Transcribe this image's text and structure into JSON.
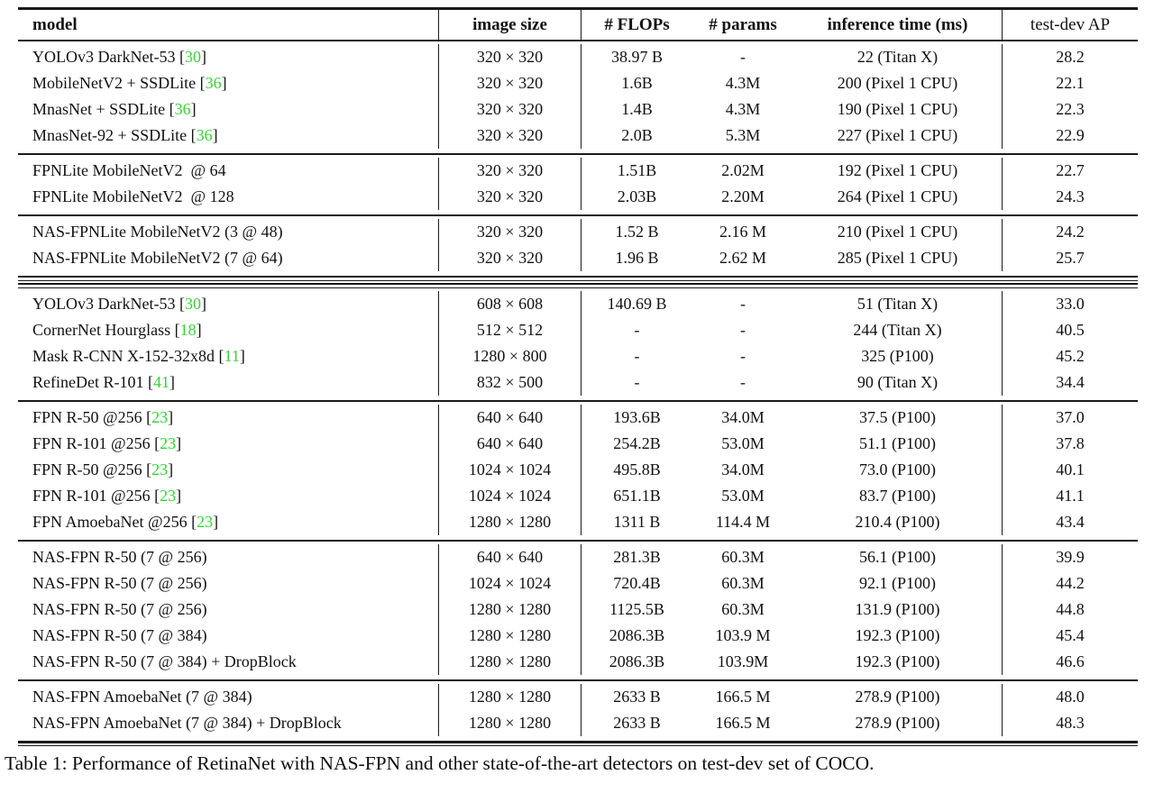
{
  "colors": {
    "citation": "#33d433"
  },
  "caption": "Table 1: Performance of RetinaNet with NAS-FPN and other state-of-the-art detectors on test-dev set of COCO.",
  "table": {
    "columns": [
      "model",
      "image size",
      "# FLOPs",
      "# params",
      "inference time (ms)",
      "test-dev AP"
    ],
    "groups": [
      {
        "rows": [
          {
            "model": "YOLOv3 DarkNet-53",
            "cite": "30",
            "size": "320 × 320",
            "flops": "38.97 B",
            "params": "-",
            "time": "22 (Titan X)",
            "ap": "28.2"
          },
          {
            "model": "MobileNetV2 + SSDLite",
            "cite": "36",
            "size": "320 × 320",
            "flops": "1.6B",
            "params": "4.3M",
            "time": "200 (Pixel 1 CPU)",
            "ap": "22.1"
          },
          {
            "model": "MnasNet + SSDLite",
            "cite": "36",
            "size": "320 × 320",
            "flops": "1.4B",
            "params": "4.3M",
            "time": "190 (Pixel 1 CPU)",
            "ap": "22.3"
          },
          {
            "model": "MnasNet-92 + SSDLite",
            "cite": "36",
            "size": "320 × 320",
            "flops": "2.0B",
            "params": "5.3M",
            "time": "227 (Pixel 1 CPU)",
            "ap": "22.9"
          }
        ]
      },
      {
        "rows": [
          {
            "model": "FPNLite MobileNetV2  @ 64",
            "cite": null,
            "size": "320 × 320",
            "flops": "1.51B",
            "params": "2.02M",
            "time": "192 (Pixel 1 CPU)",
            "ap": "22.7"
          },
          {
            "model": "FPNLite MobileNetV2  @ 128",
            "cite": null,
            "size": "320 × 320",
            "flops": "2.03B",
            "params": "2.20M",
            "time": "264 (Pixel 1 CPU)",
            "ap": "24.3"
          }
        ]
      },
      {
        "rows": [
          {
            "model": "NAS-FPNLite MobileNetV2 (3 @ 48)",
            "cite": null,
            "size": "320 × 320",
            "flops": "1.52 B",
            "params": "2.16 M",
            "time": "210 (Pixel 1 CPU)",
            "ap": "24.2"
          },
          {
            "model": "NAS-FPNLite MobileNetV2 (7 @ 64)",
            "cite": null,
            "size": "320 × 320",
            "flops": "1.96 B",
            "params": "2.62 M",
            "time": "285 (Pixel 1 CPU)",
            "ap": "25.7"
          }
        ]
      },
      {
        "rows": [
          {
            "model": "YOLOv3 DarkNet-53",
            "cite": "30",
            "size": "608 × 608",
            "flops": "140.69 B",
            "params": "-",
            "time": "51 (Titan X)",
            "ap": "33.0"
          },
          {
            "model": "CornerNet Hourglass",
            "cite": "18",
            "size": "512 × 512",
            "flops": "-",
            "params": "-",
            "time": "244 (Titan X)",
            "ap": "40.5"
          },
          {
            "model": "Mask R-CNN X-152-32x8d",
            "cite": "11",
            "size": "1280 × 800",
            "flops": "-",
            "params": "-",
            "time": "325 (P100)",
            "ap": "45.2"
          },
          {
            "model": "RefineDet R-101",
            "cite": "41",
            "size": "832 × 500",
            "flops": "-",
            "params": "-",
            "time": "90 (Titan X)",
            "ap": "34.4"
          }
        ]
      },
      {
        "rows": [
          {
            "model": "FPN R-50 @256",
            "cite": "23",
            "size": "640 × 640",
            "flops": "193.6B",
            "params": "34.0M",
            "time": "37.5 (P100)",
            "ap": "37.0"
          },
          {
            "model": "FPN R-101 @256",
            "cite": "23",
            "size": "640 × 640",
            "flops": "254.2B",
            "params": "53.0M",
            "time": "51.1 (P100)",
            "ap": "37.8"
          },
          {
            "model": "FPN R-50 @256",
            "cite": "23",
            "size": "1024 × 1024",
            "flops": "495.8B",
            "params": "34.0M",
            "time": "73.0 (P100)",
            "ap": "40.1"
          },
          {
            "model": "FPN R-101 @256",
            "cite": "23",
            "size": "1024 × 1024",
            "flops": "651.1B",
            "params": "53.0M",
            "time": "83.7 (P100)",
            "ap": "41.1"
          },
          {
            "model": "FPN AmoebaNet @256",
            "cite": "23",
            "size": "1280 × 1280",
            "flops": "1311 B",
            "params": "114.4 M",
            "time": "210.4 (P100)",
            "ap": "43.4"
          }
        ]
      },
      {
        "rows": [
          {
            "model": "NAS-FPN R-50 (7 @ 256)",
            "cite": null,
            "size": "640 × 640",
            "flops": "281.3B",
            "params": "60.3M",
            "time": "56.1 (P100)",
            "ap": "39.9"
          },
          {
            "model": "NAS-FPN R-50 (7 @ 256)",
            "cite": null,
            "size": "1024 × 1024",
            "flops": "720.4B",
            "params": "60.3M",
            "time": "92.1 (P100)",
            "ap": "44.2"
          },
          {
            "model": "NAS-FPN R-50 (7 @ 256)",
            "cite": null,
            "size": "1280 × 1280",
            "flops": "1125.5B",
            "params": "60.3M",
            "time": "131.9 (P100)",
            "ap": "44.8"
          },
          {
            "model": "NAS-FPN R-50 (7 @ 384)",
            "cite": null,
            "size": "1280 × 1280",
            "flops": "2086.3B",
            "params": "103.9 M",
            "time": "192.3 (P100)",
            "ap": "45.4"
          },
          {
            "model": "NAS-FPN R-50 (7 @ 384) + DropBlock",
            "cite": null,
            "size": "1280 × 1280",
            "flops": "2086.3B",
            "params": "103.9M",
            "time": "192.3 (P100)",
            "ap": "46.6"
          }
        ]
      },
      {
        "rows": [
          {
            "model": "NAS-FPN AmoebaNet (7 @ 384)",
            "cite": null,
            "size": "1280 × 1280",
            "flops": "2633 B",
            "params": "166.5 M",
            "time": "278.9 (P100)",
            "ap": "48.0"
          },
          {
            "model": "NAS-FPN AmoebaNet (7 @ 384) + DropBlock",
            "cite": null,
            "size": "1280 × 1280",
            "flops": "2633 B",
            "params": "166.5 M",
            "time": "278.9 (P100)",
            "ap": "48.3"
          }
        ]
      }
    ]
  }
}
